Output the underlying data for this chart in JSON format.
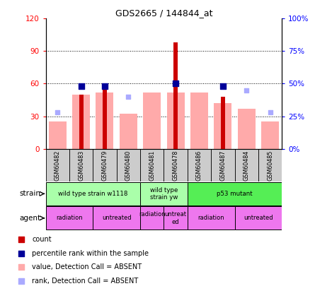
{
  "title": "GDS2665 / 144844_at",
  "samples": [
    "GSM60482",
    "GSM60483",
    "GSM60479",
    "GSM60480",
    "GSM60481",
    "GSM60478",
    "GSM60486",
    "GSM60487",
    "GSM60484",
    "GSM60485"
  ],
  "count_values": [
    0,
    50,
    60,
    0,
    0,
    98,
    0,
    48,
    0,
    0
  ],
  "percentile_values": [
    0,
    48,
    48,
    0,
    0,
    50,
    0,
    48,
    0,
    0
  ],
  "absent_value": [
    25,
    50,
    52,
    32,
    52,
    52,
    52,
    42,
    37,
    25
  ],
  "absent_rank": [
    28,
    0,
    0,
    40,
    0,
    0,
    0,
    0,
    45,
    28
  ],
  "ylim": [
    0,
    120
  ],
  "ylim_right": [
    0,
    100
  ],
  "yticks_left": [
    0,
    30,
    60,
    90,
    120
  ],
  "ytick_labels_left": [
    "0",
    "30",
    "60",
    "90",
    "120"
  ],
  "yticks_right": [
    0,
    25,
    50,
    75,
    100
  ],
  "ytick_labels_right": [
    "0%",
    "25%",
    "50%",
    "75%",
    "100%"
  ],
  "color_count": "#cc0000",
  "color_percentile": "#000099",
  "color_absent_value": "#ffaaaa",
  "color_absent_rank": "#aaaaff",
  "strain_groups": [
    {
      "label": "wild type strain w1118",
      "start": 0,
      "end": 4,
      "color": "#aaffaa"
    },
    {
      "label": "wild type\nstrain yw",
      "start": 4,
      "end": 6,
      "color": "#aaffaa"
    },
    {
      "label": "p53 mutant",
      "start": 6,
      "end": 10,
      "color": "#55ee55"
    }
  ],
  "agent_groups": [
    {
      "label": "radiation",
      "start": 0,
      "end": 2,
      "color": "#ee77ee"
    },
    {
      "label": "untreated",
      "start": 2,
      "end": 4,
      "color": "#ee77ee"
    },
    {
      "label": "radiation\n",
      "start": 4,
      "end": 5,
      "color": "#ee77ee"
    },
    {
      "label": "untreat\ned",
      "start": 5,
      "end": 6,
      "color": "#ee77ee"
    },
    {
      "label": "radiation",
      "start": 6,
      "end": 8,
      "color": "#ee77ee"
    },
    {
      "label": "untreated",
      "start": 8,
      "end": 10,
      "color": "#ee77ee"
    }
  ],
  "bg_color": "#ffffff",
  "grid_color": "#000000"
}
